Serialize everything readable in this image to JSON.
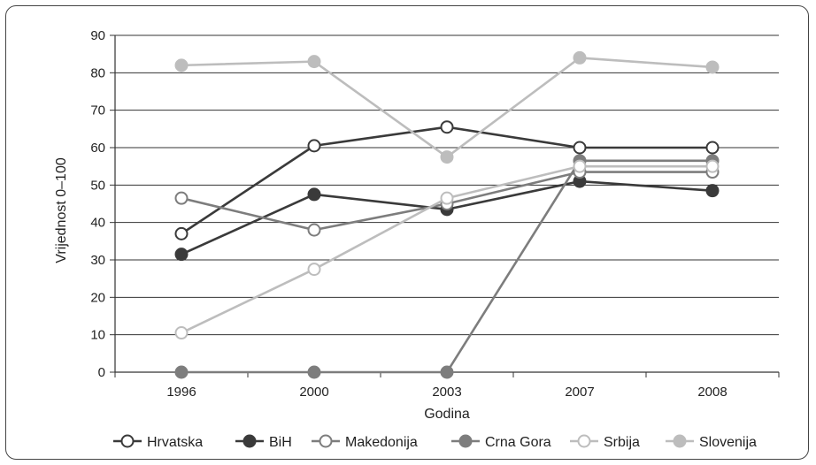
{
  "chart_data": {
    "type": "line",
    "title": "",
    "xlabel": "Godina",
    "ylabel": "Vrijednost 0–100",
    "categories": [
      "1996",
      "2000",
      "2003",
      "2007",
      "2008"
    ],
    "ylim": [
      0,
      90
    ],
    "yticks": [
      "0",
      "10",
      "20",
      "30",
      "40",
      "50",
      "60",
      "70",
      "80",
      "90"
    ],
    "grid": true,
    "legend_position": "bottom",
    "series": [
      {
        "name": "Hrvatska",
        "values": [
          37,
          60.5,
          65.5,
          60,
          60
        ],
        "color": "#3a3a3a",
        "marker_fill": "#ffffff"
      },
      {
        "name": "BiH",
        "values": [
          31.5,
          47.5,
          43.5,
          51,
          48.5
        ],
        "color": "#3a3a3a",
        "marker_fill": "#3a3a3a"
      },
      {
        "name": "Makedonija",
        "values": [
          46.5,
          38,
          45,
          53.5,
          53.5
        ],
        "color": "#7d7d7d",
        "marker_fill": "#ffffff"
      },
      {
        "name": "Crna Gora",
        "values": [
          0,
          0,
          0,
          56.5,
          56.5
        ],
        "color": "#7d7d7d",
        "marker_fill": "#7d7d7d"
      },
      {
        "name": "Srbija",
        "values": [
          10.5,
          27.5,
          46.5,
          55,
          55
        ],
        "color": "#bdbdbd",
        "marker_fill": "#ffffff"
      },
      {
        "name": "Slovenija",
        "values": [
          82,
          83,
          57.5,
          84,
          81.5
        ],
        "color": "#bdbdbd",
        "marker_fill": "#bdbdbd"
      }
    ]
  }
}
